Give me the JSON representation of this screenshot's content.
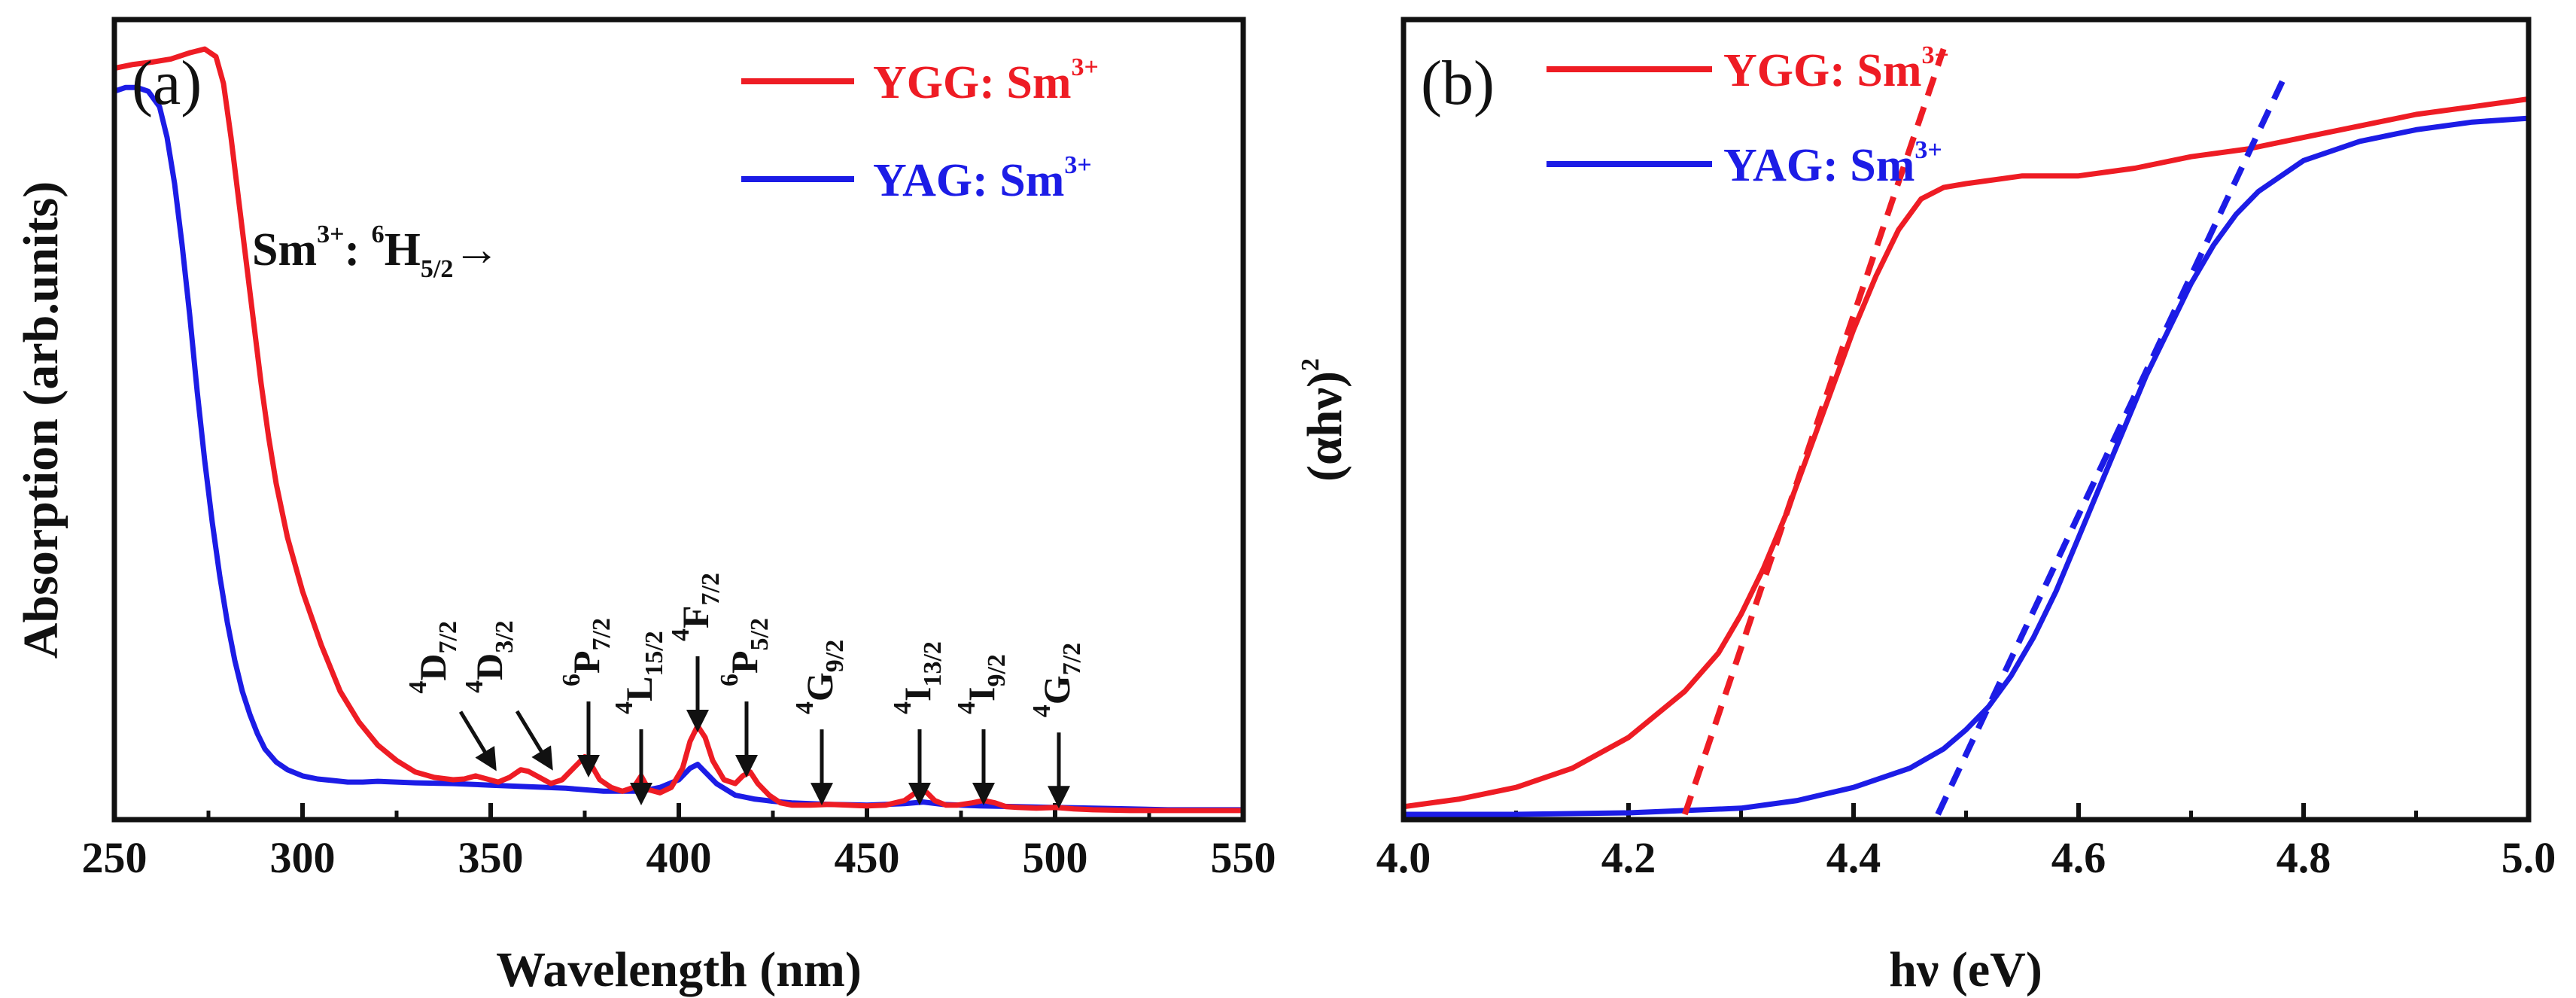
{
  "figure": {
    "type": "spectroscopy-figure",
    "panels": 2
  },
  "chart_data": [
    {
      "panel_label": "(a)",
      "type": "line",
      "xlabel": "Wavelength (nm)",
      "ylabel": "Absorption (arb.units)",
      "xlim": [
        250,
        550
      ],
      "ylim": [
        0,
        1.0
      ],
      "x_ticks": [
        250,
        300,
        350,
        400,
        450,
        500,
        550
      ],
      "y_ticks_shown": false,
      "series": [
        {
          "name": "YGG: Sm3+",
          "color": "#ee1c24",
          "x": [
            250,
            255,
            260,
            265,
            270,
            274,
            277,
            279,
            281,
            283,
            285,
            287,
            289,
            291,
            293,
            296,
            300,
            305,
            310,
            315,
            320,
            325,
            330,
            335,
            340,
            343,
            346,
            349,
            352,
            355,
            358,
            360,
            363,
            366,
            369,
            372,
            375,
            377,
            379,
            382,
            385,
            388,
            390,
            392,
            395,
            398,
            401,
            403,
            405,
            407,
            409,
            412,
            415,
            417,
            419,
            421,
            424,
            427,
            430,
            435,
            440,
            445,
            450,
            455,
            460,
            462,
            464,
            466,
            468,
            471,
            474,
            478,
            481,
            484,
            487,
            490,
            495,
            500,
            505,
            510,
            520,
            530,
            540,
            550
          ],
          "values": [
            0.97,
            0.975,
            0.978,
            0.982,
            0.99,
            0.995,
            0.985,
            0.95,
            0.88,
            0.8,
            0.72,
            0.64,
            0.56,
            0.49,
            0.43,
            0.36,
            0.29,
            0.22,
            0.16,
            0.12,
            0.09,
            0.07,
            0.055,
            0.048,
            0.045,
            0.046,
            0.05,
            0.046,
            0.042,
            0.048,
            0.058,
            0.056,
            0.048,
            0.04,
            0.045,
            0.06,
            0.075,
            0.062,
            0.045,
            0.035,
            0.03,
            0.035,
            0.05,
            0.032,
            0.028,
            0.035,
            0.06,
            0.095,
            0.115,
            0.1,
            0.07,
            0.045,
            0.04,
            0.05,
            0.055,
            0.04,
            0.025,
            0.015,
            0.012,
            0.012,
            0.013,
            0.012,
            0.011,
            0.012,
            0.018,
            0.025,
            0.032,
            0.028,
            0.018,
            0.012,
            0.012,
            0.015,
            0.018,
            0.015,
            0.01,
            0.009,
            0.008,
            0.009,
            0.007,
            0.006,
            0.005,
            0.005,
            0.005,
            0.005
          ]
        },
        {
          "name": "YAG: Sm3+",
          "color": "#1c1ce6",
          "x": [
            250,
            253,
            256,
            259,
            262,
            264,
            266,
            268,
            270,
            272,
            274,
            276,
            278,
            280,
            282,
            284,
            286,
            288,
            290,
            293,
            296,
            300,
            304,
            308,
            312,
            316,
            320,
            330,
            340,
            350,
            360,
            370,
            380,
            390,
            395,
            400,
            403,
            405,
            407,
            410,
            415,
            420,
            425,
            430,
            440,
            450,
            460,
            465,
            470,
            480,
            490,
            500,
            510,
            520,
            530,
            540,
            550
          ],
          "values": [
            0.94,
            0.945,
            0.945,
            0.94,
            0.92,
            0.88,
            0.82,
            0.74,
            0.65,
            0.55,
            0.46,
            0.38,
            0.31,
            0.25,
            0.2,
            0.16,
            0.13,
            0.105,
            0.085,
            0.068,
            0.058,
            0.05,
            0.046,
            0.044,
            0.042,
            0.042,
            0.043,
            0.041,
            0.04,
            0.038,
            0.036,
            0.034,
            0.03,
            0.03,
            0.035,
            0.045,
            0.06,
            0.065,
            0.055,
            0.04,
            0.025,
            0.02,
            0.017,
            0.015,
            0.013,
            0.012,
            0.014,
            0.016,
            0.013,
            0.011,
            0.01,
            0.009,
            0.008,
            0.007,
            0.006,
            0.006,
            0.006
          ]
        }
      ],
      "annotation_main": {
        "base": "Sm",
        "sup1": "3+",
        "mid": ": ",
        "sup2": "6",
        "letter": "H",
        "sub": "5/2",
        "arrow": "→"
      },
      "transitions": [
        {
          "sup": "4",
          "letter": "D",
          "sub": "7/2",
          "x_nm": 348,
          "arrow": "diagonal"
        },
        {
          "sup": "4",
          "letter": "D",
          "sub": "3/2",
          "x_nm": 363,
          "arrow": "diagonal"
        },
        {
          "sup": "6",
          "letter": "P",
          "sub": "7/2",
          "x_nm": 376,
          "arrow": "vertical"
        },
        {
          "sup": "4",
          "letter": "L",
          "sub": "15/2",
          "x_nm": 390,
          "arrow": "vertical"
        },
        {
          "sup": "4",
          "letter": "F",
          "sub": "7/2",
          "x_nm": 405,
          "arrow": "vertical"
        },
        {
          "sup": "6",
          "letter": "P",
          "sub": "5/2",
          "x_nm": 418,
          "arrow": "vertical"
        },
        {
          "sup": "4",
          "letter": "G",
          "sub": "9/2",
          "x_nm": 438,
          "arrow": "vertical"
        },
        {
          "sup": "4",
          "letter": "I",
          "sub": "13/2",
          "x_nm": 464,
          "arrow": "vertical"
        },
        {
          "sup": "4",
          "letter": "I",
          "sub": "9/2",
          "x_nm": 481,
          "arrow": "vertical"
        },
        {
          "sup": "4",
          "letter": "G",
          "sub": "7/2",
          "x_nm": 501,
          "arrow": "vertical"
        }
      ],
      "legend_position": "top-right"
    },
    {
      "panel_label": "(b)",
      "type": "line",
      "xlabel": "hν (eV)",
      "ylabel": "(αhν)",
      "ylabel_sup": "2",
      "xlim": [
        4.0,
        5.0
      ],
      "ylim": [
        0,
        1.0
      ],
      "x_ticks": [
        "4.0",
        "4.2",
        "4.4",
        "4.6",
        "4.8",
        "5.0"
      ],
      "y_ticks_shown": false,
      "series": [
        {
          "name": "YGG: Sm3+",
          "color": "#ee1c24",
          "x": [
            4.0,
            4.05,
            4.1,
            4.15,
            4.2,
            4.25,
            4.28,
            4.3,
            4.32,
            4.34,
            4.36,
            4.38,
            4.4,
            4.42,
            4.44,
            4.46,
            4.48,
            4.5,
            4.55,
            4.6,
            4.65,
            4.7,
            4.75,
            4.8,
            4.85,
            4.9,
            4.95,
            5.0
          ],
          "values": [
            0.01,
            0.02,
            0.035,
            0.06,
            0.1,
            0.16,
            0.21,
            0.26,
            0.32,
            0.39,
            0.47,
            0.55,
            0.63,
            0.7,
            0.76,
            0.8,
            0.815,
            0.82,
            0.83,
            0.83,
            0.84,
            0.855,
            0.865,
            0.88,
            0.895,
            0.91,
            0.92,
            0.93
          ]
        },
        {
          "name": "YAG: Sm3+",
          "color": "#1c1ce6",
          "x": [
            4.0,
            4.1,
            4.2,
            4.3,
            4.35,
            4.4,
            4.45,
            4.48,
            4.5,
            4.52,
            4.54,
            4.56,
            4.58,
            4.6,
            4.62,
            4.64,
            4.66,
            4.68,
            4.7,
            4.72,
            4.74,
            4.76,
            4.78,
            4.8,
            4.85,
            4.9,
            4.95,
            5.0
          ],
          "values": [
            0.0,
            0.0,
            0.002,
            0.008,
            0.018,
            0.035,
            0.06,
            0.085,
            0.11,
            0.14,
            0.18,
            0.23,
            0.29,
            0.36,
            0.43,
            0.5,
            0.57,
            0.63,
            0.69,
            0.74,
            0.78,
            0.81,
            0.83,
            0.85,
            0.875,
            0.89,
            0.9,
            0.905
          ]
        }
      ],
      "tangent_lines": [
        {
          "series": "YGG: Sm3+",
          "color": "#ee1c24",
          "x": [
            4.25,
            4.48
          ],
          "values": [
            0.0,
            0.995
          ]
        },
        {
          "series": "YAG: Sm3+",
          "color": "#1c1ce6",
          "x": [
            4.475,
            4.785
          ],
          "values": [
            0.0,
            0.965
          ]
        }
      ],
      "legend_position": "top-left"
    }
  ],
  "legend_parts": {
    "ygg_base": "YGG: Sm",
    "yag_base": "YAG: Sm",
    "sup": "3+"
  }
}
